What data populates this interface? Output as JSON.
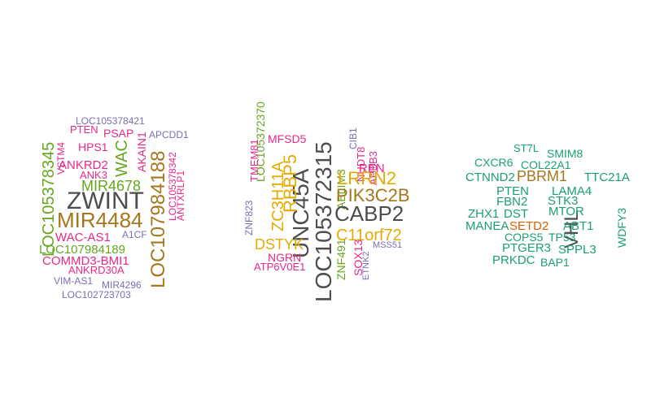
{
  "colors": {
    "black": "#4d4d4d",
    "brown": "#a6761d",
    "green": "#66a61e",
    "magenta": "#e7298a",
    "purple": "#7570b3",
    "gold": "#e6ab02",
    "teal": "#1b9e77",
    "orange": "#d95f02"
  },
  "clouds": [
    {
      "words": [
        {
          "text": "LOC105378421",
          "color": "purple",
          "weight": 3
        },
        {
          "text": "PTEN",
          "color": "magenta",
          "weight": 4
        },
        {
          "text": "PSAP",
          "color": "magenta",
          "weight": 4
        },
        {
          "text": "APCDD1",
          "color": "purple",
          "weight": 3
        },
        {
          "text": "HPS1",
          "color": "magenta",
          "weight": 4
        },
        {
          "text": "LOC105378345",
          "color": "green",
          "weight": 6
        },
        {
          "text": "VSTM4",
          "color": "magenta",
          "weight": 3
        },
        {
          "text": "AKAIN1",
          "color": "magenta",
          "weight": 3
        },
        {
          "text": "ANKRD2",
          "color": "magenta",
          "weight": 4
        },
        {
          "text": "WAC",
          "color": "green",
          "weight": 6
        },
        {
          "text": "ANK3",
          "color": "magenta",
          "weight": 4
        },
        {
          "text": "MIR4678",
          "color": "green",
          "weight": 5
        },
        {
          "text": "LOC107984188",
          "color": "brown",
          "weight": 8
        },
        {
          "text": "LOC105378342",
          "color": "magenta",
          "weight": 3
        },
        {
          "text": "ANTXRLP1",
          "color": "magenta",
          "weight": 3
        },
        {
          "text": "ZWINT",
          "color": "black",
          "weight": 10
        },
        {
          "text": "MIR4484",
          "color": "brown",
          "weight": 8
        },
        {
          "text": "A1CF",
          "color": "purple",
          "weight": 3
        },
        {
          "text": "WAC-AS1",
          "color": "magenta",
          "weight": 4
        },
        {
          "text": "LOC107984189",
          "color": "green",
          "weight": 5
        },
        {
          "text": "COMMD3-BMI1",
          "color": "magenta",
          "weight": 4
        },
        {
          "text": "ANKRD30A",
          "color": "magenta",
          "weight": 3
        },
        {
          "text": "VIM-AS1",
          "color": "purple",
          "weight": 3
        },
        {
          "text": "MIR4296",
          "color": "purple",
          "weight": 3
        },
        {
          "text": "LOC102723703",
          "color": "purple",
          "weight": 3
        }
      ]
    },
    {
      "words": [
        {
          "text": "LOC105372370",
          "color": "green",
          "weight": 5
        },
        {
          "text": "MFSD5",
          "color": "magenta",
          "weight": 4
        },
        {
          "text": "TMEM81",
          "color": "magenta",
          "weight": 3
        },
        {
          "text": "ZNF823",
          "color": "purple",
          "weight": 3
        },
        {
          "text": "LOC105372315",
          "color": "black",
          "weight": 10
        },
        {
          "text": "UNC45A",
          "color": "black",
          "weight": 10
        },
        {
          "text": "CIB1",
          "color": "purple",
          "weight": 3
        },
        {
          "text": "ABLIM3",
          "color": "green",
          "weight": 4
        },
        {
          "text": "NUDT8",
          "color": "magenta",
          "weight": 3
        },
        {
          "text": "APBB3",
          "color": "magenta",
          "weight": 3
        },
        {
          "text": "REN",
          "color": "magenta",
          "weight": 4
        },
        {
          "text": "RBBP5",
          "color": "gold",
          "weight": 6
        },
        {
          "text": "ZC3H11A",
          "color": "gold",
          "weight": 6
        },
        {
          "text": "LRRN2",
          "color": "gold",
          "weight": 7
        },
        {
          "text": "PIK3C2B",
          "color": "brown",
          "weight": 8
        },
        {
          "text": "CABP2",
          "color": "black",
          "weight": 9
        },
        {
          "text": "DSTYK",
          "color": "gold",
          "weight": 6
        },
        {
          "text": "C11orf72",
          "color": "gold",
          "weight": 6
        },
        {
          "text": "ZNF491",
          "color": "green",
          "weight": 4
        },
        {
          "text": "ETNK2",
          "color": "purple",
          "weight": 3
        },
        {
          "text": "MSS51",
          "color": "purple",
          "weight": 3
        },
        {
          "text": "NGRN",
          "color": "magenta",
          "weight": 4
        },
        {
          "text": "SOX13",
          "color": "magenta",
          "weight": 4
        },
        {
          "text": "ATP6V0E1",
          "color": "magenta",
          "weight": 4
        }
      ]
    },
    {
      "words": [
        {
          "text": "ST7L",
          "color": "teal",
          "weight": 4
        },
        {
          "text": "SMIM8",
          "color": "teal",
          "weight": 4
        },
        {
          "text": "CXCR6",
          "color": "teal",
          "weight": 4
        },
        {
          "text": "COL22A1",
          "color": "teal",
          "weight": 4
        },
        {
          "text": "CTNND2",
          "color": "teal",
          "weight": 4
        },
        {
          "text": "PBRM1",
          "color": "brown",
          "weight": 7
        },
        {
          "text": "TTC21A",
          "color": "teal",
          "weight": 4
        },
        {
          "text": "PTEN",
          "color": "teal",
          "weight": 4
        },
        {
          "text": "LAMA4",
          "color": "teal",
          "weight": 4
        },
        {
          "text": "FBN2",
          "color": "teal",
          "weight": 4
        },
        {
          "text": "STK3",
          "color": "teal",
          "weight": 4
        },
        {
          "text": "VHL",
          "color": "black",
          "weight": 8
        },
        {
          "text": "ZHX1",
          "color": "teal",
          "weight": 4
        },
        {
          "text": "DST",
          "color": "teal",
          "weight": 4
        },
        {
          "text": "MTOR",
          "color": "teal",
          "weight": 4
        },
        {
          "text": "WDFY3",
          "color": "teal",
          "weight": 4
        },
        {
          "text": "MANEA",
          "color": "teal",
          "weight": 4
        },
        {
          "text": "SETD2",
          "color": "orange",
          "weight": 4
        },
        {
          "text": "ABT1",
          "color": "teal",
          "weight": 4
        },
        {
          "text": "COPS5",
          "color": "teal",
          "weight": 4
        },
        {
          "text": "TP53",
          "color": "teal",
          "weight": 4
        },
        {
          "text": "PTGER3",
          "color": "teal",
          "weight": 4
        },
        {
          "text": "SPPL3",
          "color": "teal",
          "weight": 4
        },
        {
          "text": "PRKDC",
          "color": "teal",
          "weight": 4
        },
        {
          "text": "BAP1",
          "color": "teal",
          "weight": 4
        }
      ]
    }
  ]
}
